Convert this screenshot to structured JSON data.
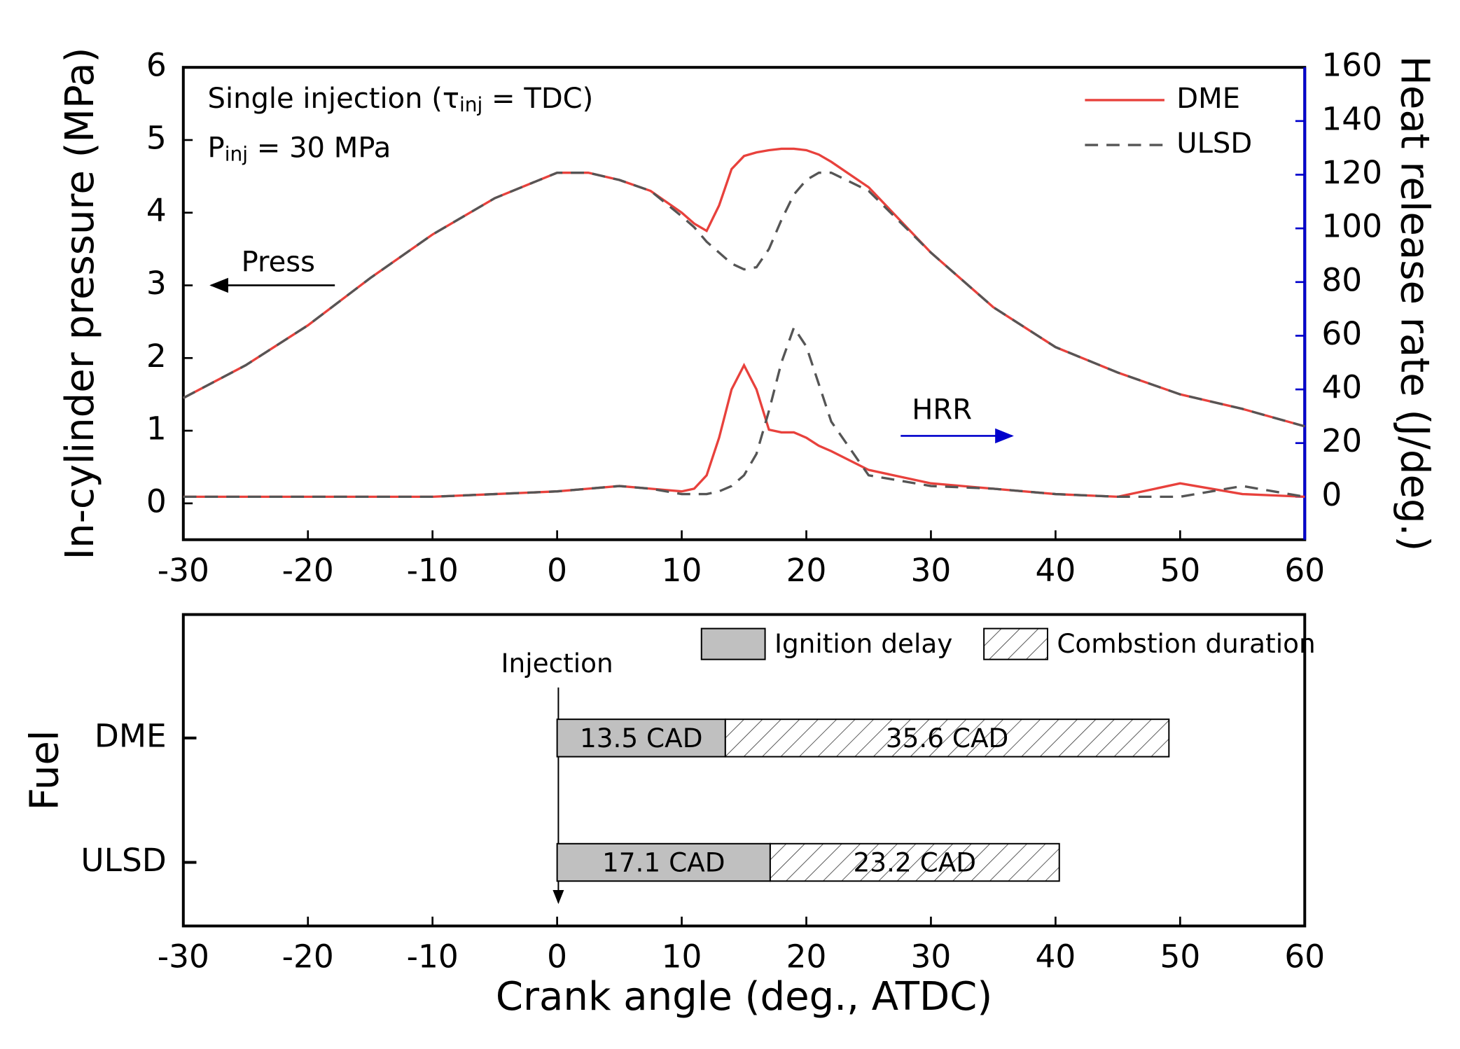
{
  "chart_data": [
    {
      "type": "line",
      "x": [
        -30,
        -25,
        -20,
        -15,
        -10,
        -5,
        0,
        2.5,
        5,
        7.5,
        10,
        11,
        12,
        13,
        14,
        15,
        16,
        17,
        18,
        19,
        20,
        21,
        22,
        25,
        30,
        35,
        40,
        45,
        50,
        55,
        60
      ],
      "series": [
        {
          "name": "DME",
          "color": "#e8413c",
          "dash": "solid",
          "values": [
            1.45,
            1.9,
            2.45,
            3.1,
            3.7,
            4.2,
            4.55,
            4.55,
            4.45,
            4.3,
            4.0,
            3.85,
            3.75,
            4.1,
            4.6,
            4.78,
            4.83,
            4.86,
            4.88,
            4.88,
            4.86,
            4.8,
            4.7,
            4.35,
            3.45,
            2.7,
            2.15,
            1.8,
            1.5,
            1.3,
            1.06
          ]
        },
        {
          "name": "ULSD",
          "color": "#555555",
          "dash": "dashed",
          "values": [
            1.45,
            1.9,
            2.45,
            3.1,
            3.7,
            4.2,
            4.55,
            4.55,
            4.45,
            4.3,
            3.95,
            3.8,
            3.6,
            3.45,
            3.3,
            3.22,
            3.25,
            3.5,
            3.9,
            4.25,
            4.45,
            4.55,
            4.55,
            4.3,
            3.45,
            2.7,
            2.15,
            1.8,
            1.5,
            1.3,
            1.06
          ]
        },
        {
          "color": "#e8413c",
          "dash": "solid",
          "axis": "y2",
          "values": [
            0,
            0,
            0,
            0,
            0,
            1,
            2,
            3,
            4,
            3,
            2,
            3,
            8,
            22,
            40,
            49,
            40,
            25,
            24,
            24,
            22,
            19,
            17,
            10,
            5,
            3,
            1,
            0,
            5,
            1,
            0
          ]
        },
        {
          "color": "#555555",
          "dash": "dashed",
          "axis": "y2",
          "values": [
            0,
            0,
            0,
            0,
            0,
            1,
            2,
            3,
            4,
            3,
            1,
            1,
            1,
            2,
            4,
            8,
            16,
            32,
            50,
            63,
            56,
            42,
            28,
            8,
            4,
            3,
            1,
            0,
            0,
            4,
            0
          ]
        }
      ],
      "ylabel": "In-cylinder pressure (MPa)",
      "y2label": "Heat release rate (J/deg.)",
      "xlim": [
        -30,
        60
      ],
      "xticks": [
        -30,
        -20,
        -10,
        0,
        10,
        20,
        30,
        40,
        50,
        60
      ],
      "ylim": [
        -0.5,
        6
      ],
      "yticks": [
        0,
        1,
        2,
        3,
        4,
        5,
        6
      ],
      "y2lim": [
        -16,
        160
      ],
      "y2ticks": [
        0,
        20,
        40,
        60,
        80,
        100,
        120,
        140,
        160
      ],
      "y2color": "#0000cc",
      "legend": "upper right",
      "annotations": [
        {
          "parts": [
            "Single injection (τ",
            "inj",
            " = TDC)"
          ]
        },
        {
          "parts": [
            "P",
            "inj",
            " = 30 MPa"
          ]
        },
        {
          "text": "Press"
        },
        {
          "text": "HRR"
        }
      ]
    },
    {
      "type": "barh",
      "categories": [
        "DME",
        "ULSD"
      ],
      "series": [
        {
          "name": "Ignition delay",
          "color": "#c0c0c0",
          "values": [
            13.5,
            17.1
          ],
          "value_labels": [
            "13.5 CAD",
            "17.1 CAD"
          ]
        },
        {
          "name": "Combstion duration",
          "color": "hatch",
          "values": [
            35.6,
            23.2
          ],
          "value_labels": [
            "35.6 CAD",
            "23.2 CAD"
          ]
        }
      ],
      "ylabel": "Fuel",
      "xlabel": "Crank angle (deg., ATDC)",
      "xlim": [
        -30,
        60
      ],
      "xticks": [
        -30,
        -20,
        -10,
        0,
        10,
        20,
        30,
        40,
        50,
        60
      ],
      "annotations": [
        {
          "text": "Injection",
          "x": 0
        }
      ]
    }
  ]
}
